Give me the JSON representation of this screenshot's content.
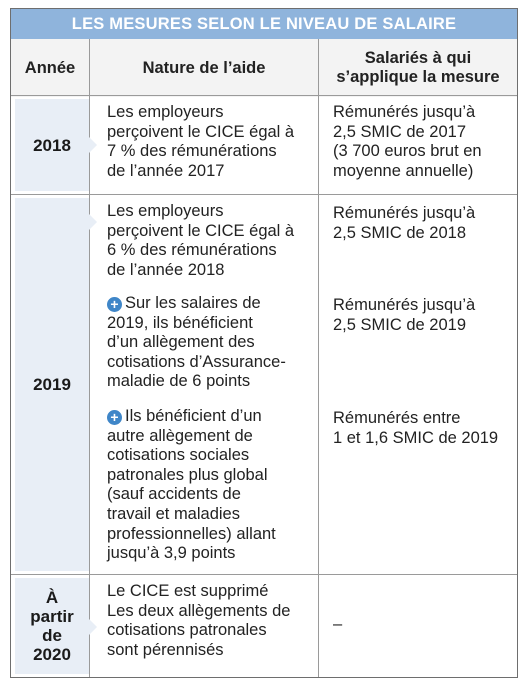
{
  "title": "LES MESURES SELON LE NIVEAU DE SALAIRE",
  "header": {
    "col1": "Année",
    "col2": "Nature de l’aide",
    "col3_line1": "Salariés à qui",
    "col3_line2": "s’applique la mesure"
  },
  "rows": [
    {
      "year": "2018",
      "aid": [
        "Les employeurs",
        "perçoivent le CICE égal à",
        "7 % des rémunérations",
        "de l’année 2017"
      ],
      "employees": [
        "Rémunérés jusqu’à",
        "2,5 SMIC de 2017",
        "(3 700 euros brut en",
        "moyenne annuelle)"
      ]
    },
    {
      "year": "2019",
      "aid_blocks": [
        {
          "plus": false,
          "lines": [
            "Les employeurs",
            "perçoivent le CICE égal à",
            "6 % des rémunérations",
            "de l’année 2018"
          ]
        },
        {
          "plus": true,
          "lines": [
            "Sur les salaires de",
            "2019, ils bénéficient",
            "d’un allègement des",
            "cotisations d’Assurance-",
            "maladie de 6 points"
          ]
        },
        {
          "plus": true,
          "lines": [
            "Ils bénéficient d’un",
            "autre allègement de",
            "cotisations sociales",
            "patronales plus global",
            "(sauf accidents de",
            "travail et maladies",
            "professionnelles) allant",
            "jusqu’à 3,9 points"
          ]
        }
      ],
      "employee_blocks": [
        [
          "Rémunérés jusqu’à",
          "2,5 SMIC de 2018"
        ],
        [
          "Rémunérés jusqu’à",
          "2,5 SMIC de 2019"
        ],
        [
          "Rémunérés entre",
          "1 et 1,6 SMIC de 2019"
        ]
      ]
    },
    {
      "year_lines": [
        "À",
        "partir",
        "de",
        "2020"
      ],
      "aid": [
        "Le CICE est supprimé",
        "Les deux allègements de",
        "cotisations patronales",
        "sont pérennisés"
      ],
      "employees": "–"
    }
  ]
}
